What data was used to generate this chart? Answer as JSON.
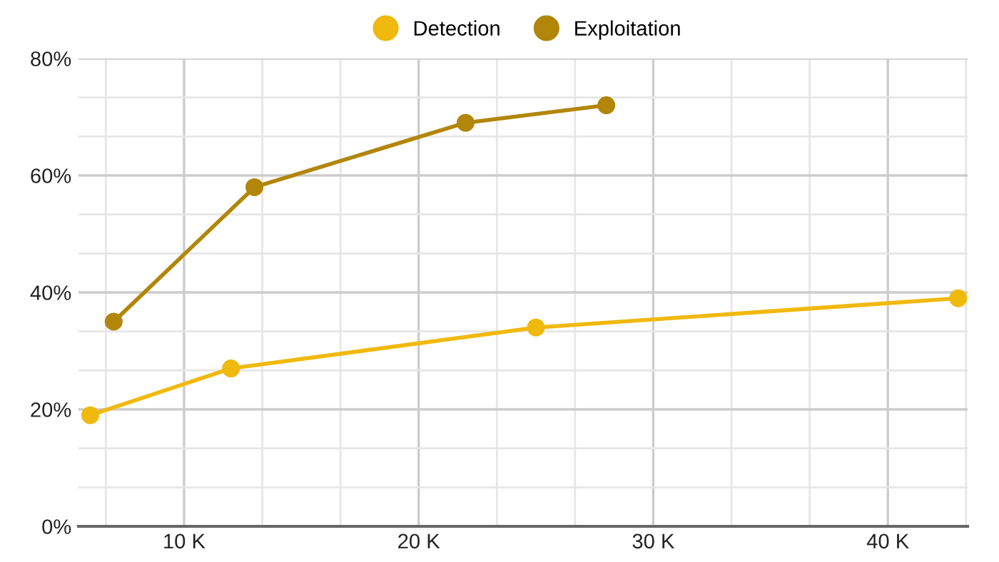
{
  "chart_data": {
    "type": "line",
    "series": [
      {
        "name": "Detection",
        "color": "#f0b90e",
        "x": [
          6,
          12,
          25,
          43
        ],
        "values": [
          19,
          27,
          34,
          39
        ]
      },
      {
        "name": "Exploitation",
        "color": "#b2860a",
        "x": [
          7,
          13,
          22,
          28
        ],
        "values": [
          35,
          58,
          69,
          72
        ]
      }
    ],
    "xlim": [
      5.5,
      43.4
    ],
    "xticks": [
      {
        "value": 10,
        "label": "10 K"
      },
      {
        "value": 20,
        "label": "20 K"
      },
      {
        "value": 30,
        "label": "30 K"
      },
      {
        "value": 40,
        "label": "40 K"
      }
    ],
    "ylim": [
      0,
      80
    ],
    "yticks": [
      {
        "value": 0,
        "label": "0%"
      },
      {
        "value": 20,
        "label": "20%"
      },
      {
        "value": 40,
        "label": "40%"
      },
      {
        "value": 60,
        "label": "60%"
      },
      {
        "value": 80,
        "label": "80%"
      }
    ],
    "grid": true,
    "legend": "top",
    "marker": "circle",
    "line_style": "solid"
  }
}
